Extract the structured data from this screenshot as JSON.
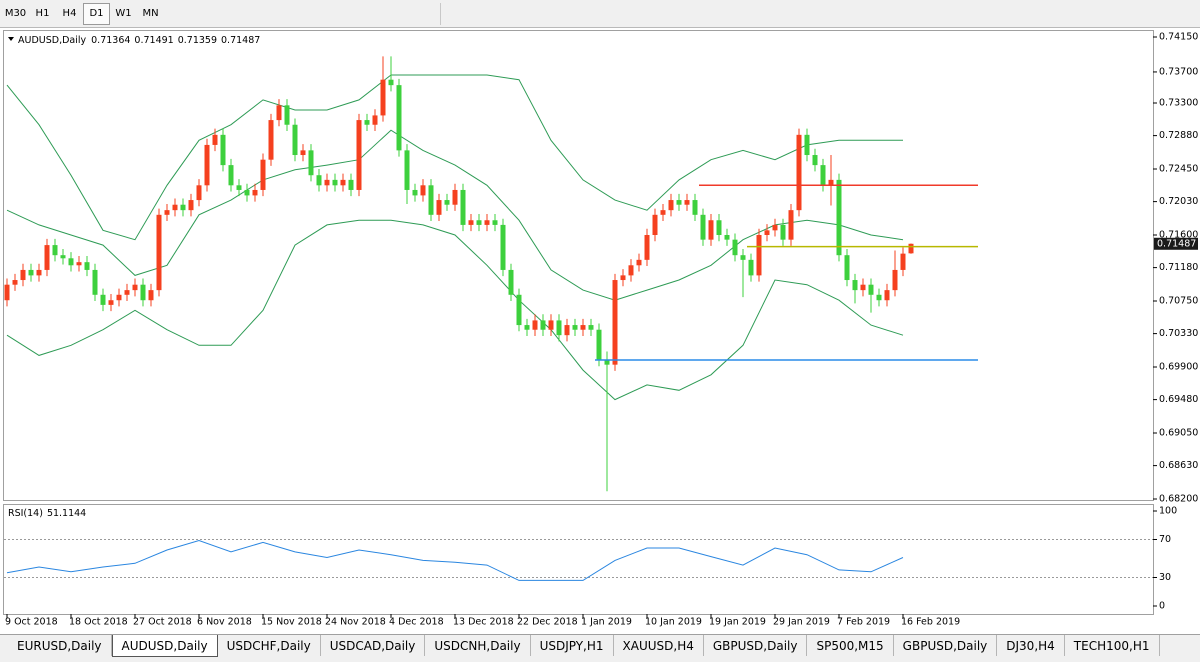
{
  "toolbar": {
    "timeframes": [
      "M30",
      "H1",
      "H4",
      "D1",
      "W1",
      "MN"
    ],
    "active": "D1"
  },
  "chart": {
    "type": "candlestick",
    "symbol": "AUDUSD,Daily",
    "categories": [
      "9 Oct 2018",
      "18 Oct 2018",
      "27 Oct 2018",
      "6 Nov 2018",
      "15 Nov 2018",
      "24 Nov 2018",
      "4 Dec 2018",
      "13 Dec 2018",
      "22 Dec 2018",
      "1 Jan 2019",
      "10 Jan 2019",
      "19 Jan 2019",
      "29 Jan 2019",
      "7 Feb 2019",
      "16 Feb 2019"
    ],
    "candles": [
      [
        0.7076,
        0.7104,
        0.7068,
        0.7096
      ],
      [
        0.7096,
        0.711,
        0.7088,
        0.7102
      ],
      [
        0.7102,
        0.7123,
        0.7094,
        0.7115
      ],
      [
        0.7115,
        0.7123,
        0.71,
        0.7108
      ],
      [
        0.7108,
        0.7123,
        0.71,
        0.7115
      ],
      [
        0.7115,
        0.7155,
        0.7107,
        0.7147
      ],
      [
        0.7147,
        0.7155,
        0.7126,
        0.7134
      ],
      [
        0.7134,
        0.7142,
        0.7122,
        0.713
      ],
      [
        0.713,
        0.7138,
        0.7113,
        0.7121
      ],
      [
        0.7121,
        0.7133,
        0.7113,
        0.7125
      ],
      [
        0.7125,
        0.7133,
        0.7107,
        0.7115
      ],
      [
        0.7115,
        0.7123,
        0.7075,
        0.7083
      ],
      [
        0.7083,
        0.7091,
        0.7062,
        0.707
      ],
      [
        0.707,
        0.7084,
        0.7062,
        0.7076
      ],
      [
        0.7076,
        0.7091,
        0.7068,
        0.7083
      ],
      [
        0.7083,
        0.7097,
        0.7075,
        0.7089
      ],
      [
        0.7089,
        0.7104,
        0.7081,
        0.7096
      ],
      [
        0.7096,
        0.7104,
        0.7068,
        0.7076
      ],
      [
        0.7076,
        0.7097,
        0.7068,
        0.7089
      ],
      [
        0.7089,
        0.7194,
        0.7081,
        0.7186
      ],
      [
        0.7186,
        0.72,
        0.7178,
        0.7192
      ],
      [
        0.7192,
        0.7207,
        0.7184,
        0.7199
      ],
      [
        0.7199,
        0.7207,
        0.7184,
        0.7192
      ],
      [
        0.7192,
        0.7213,
        0.7184,
        0.7205
      ],
      [
        0.7205,
        0.7232,
        0.7197,
        0.7224
      ],
      [
        0.7224,
        0.7284,
        0.7216,
        0.7276
      ],
      [
        0.7276,
        0.7297,
        0.7268,
        0.7289
      ],
      [
        0.7289,
        0.7297,
        0.7242,
        0.725
      ],
      [
        0.725,
        0.7258,
        0.7216,
        0.7224
      ],
      [
        0.7224,
        0.7232,
        0.721,
        0.7218
      ],
      [
        0.7218,
        0.7226,
        0.7203,
        0.7211
      ],
      [
        0.7211,
        0.7226,
        0.7203,
        0.7218
      ],
      [
        0.7218,
        0.7265,
        0.721,
        0.7257
      ],
      [
        0.7257,
        0.7316,
        0.7249,
        0.7308
      ],
      [
        0.7308,
        0.7335,
        0.73,
        0.7327
      ],
      [
        0.7327,
        0.7335,
        0.7294,
        0.7302
      ],
      [
        0.7302,
        0.731,
        0.7255,
        0.7263
      ],
      [
        0.7263,
        0.7277,
        0.7255,
        0.7269
      ],
      [
        0.7269,
        0.7277,
        0.7229,
        0.7237
      ],
      [
        0.7237,
        0.7245,
        0.7216,
        0.7224
      ],
      [
        0.7224,
        0.7239,
        0.7216,
        0.7231
      ],
      [
        0.7231,
        0.7239,
        0.7216,
        0.7224
      ],
      [
        0.7224,
        0.7239,
        0.7216,
        0.7231
      ],
      [
        0.7231,
        0.7239,
        0.721,
        0.7218
      ],
      [
        0.7218,
        0.7316,
        0.721,
        0.7308
      ],
      [
        0.7308,
        0.7316,
        0.7294,
        0.7302
      ],
      [
        0.7302,
        0.7322,
        0.7294,
        0.7314
      ],
      [
        0.7314,
        0.739,
        0.7306,
        0.736
      ],
      [
        0.736,
        0.739,
        0.7345,
        0.7353
      ],
      [
        0.7353,
        0.7361,
        0.7261,
        0.7269
      ],
      [
        0.7269,
        0.7277,
        0.72,
        0.7218
      ],
      [
        0.7218,
        0.7226,
        0.7203,
        0.7211
      ],
      [
        0.7211,
        0.7232,
        0.7203,
        0.7224
      ],
      [
        0.7224,
        0.7232,
        0.7178,
        0.7186
      ],
      [
        0.7186,
        0.7213,
        0.7178,
        0.7205
      ],
      [
        0.7205,
        0.7213,
        0.7191,
        0.7199
      ],
      [
        0.7199,
        0.7226,
        0.7191,
        0.7218
      ],
      [
        0.7218,
        0.7226,
        0.7165,
        0.7173
      ],
      [
        0.7173,
        0.7187,
        0.7165,
        0.7179
      ],
      [
        0.7179,
        0.7187,
        0.7165,
        0.7173
      ],
      [
        0.7173,
        0.7187,
        0.7165,
        0.7179
      ],
      [
        0.7179,
        0.7187,
        0.7165,
        0.7173
      ],
      [
        0.7173,
        0.7181,
        0.7107,
        0.7115
      ],
      [
        0.7115,
        0.7123,
        0.7075,
        0.7083
      ],
      [
        0.7083,
        0.7091,
        0.7036,
        0.7044
      ],
      [
        0.7044,
        0.7052,
        0.703,
        0.7038
      ],
      [
        0.7038,
        0.7058,
        0.703,
        0.705
      ],
      [
        0.705,
        0.7058,
        0.703,
        0.7038
      ],
      [
        0.7038,
        0.7058,
        0.703,
        0.705
      ],
      [
        0.705,
        0.7058,
        0.7023,
        0.7031
      ],
      [
        0.7031,
        0.7052,
        0.7023,
        0.7044
      ],
      [
        0.7044,
        0.7052,
        0.703,
        0.7038
      ],
      [
        0.7038,
        0.7052,
        0.703,
        0.7044
      ],
      [
        0.7044,
        0.7052,
        0.703,
        0.7038
      ],
      [
        0.7038,
        0.7046,
        0.6991,
        0.6999
      ],
      [
        0.6999,
        0.701,
        0.683,
        0.6993
      ],
      [
        0.6993,
        0.711,
        0.6985,
        0.7102
      ],
      [
        0.7102,
        0.7116,
        0.7094,
        0.7108
      ],
      [
        0.7108,
        0.7129,
        0.71,
        0.7121
      ],
      [
        0.7121,
        0.7136,
        0.7113,
        0.7128
      ],
      [
        0.7128,
        0.7168,
        0.712,
        0.716
      ],
      [
        0.716,
        0.7194,
        0.7152,
        0.7186
      ],
      [
        0.7186,
        0.72,
        0.7178,
        0.7192
      ],
      [
        0.7192,
        0.7213,
        0.7184,
        0.7205
      ],
      [
        0.7205,
        0.7213,
        0.7191,
        0.7199
      ],
      [
        0.7199,
        0.7213,
        0.7191,
        0.7205
      ],
      [
        0.7205,
        0.7213,
        0.7178,
        0.7186
      ],
      [
        0.7186,
        0.7194,
        0.7146,
        0.7154
      ],
      [
        0.7154,
        0.7187,
        0.7146,
        0.7179
      ],
      [
        0.7179,
        0.7187,
        0.7152,
        0.716
      ],
      [
        0.716,
        0.7168,
        0.7146,
        0.7154
      ],
      [
        0.7154,
        0.7162,
        0.7126,
        0.7134
      ],
      [
        0.7134,
        0.7142,
        0.708,
        0.7128
      ],
      [
        0.7128,
        0.7136,
        0.71,
        0.7108
      ],
      [
        0.7108,
        0.7168,
        0.71,
        0.716
      ],
      [
        0.716,
        0.7174,
        0.7152,
        0.7166
      ],
      [
        0.7166,
        0.7181,
        0.7158,
        0.7173
      ],
      [
        0.7173,
        0.7181,
        0.7146,
        0.7154
      ],
      [
        0.7154,
        0.72,
        0.7146,
        0.7192
      ],
      [
        0.7192,
        0.7297,
        0.7184,
        0.7289
      ],
      [
        0.7289,
        0.7297,
        0.7255,
        0.7263
      ],
      [
        0.7263,
        0.7271,
        0.7242,
        0.725
      ],
      [
        0.725,
        0.7258,
        0.7216,
        0.7224
      ],
      [
        0.7224,
        0.7263,
        0.7198,
        0.7231
      ],
      [
        0.7231,
        0.7239,
        0.7126,
        0.7134
      ],
      [
        0.7134,
        0.7142,
        0.7094,
        0.7102
      ],
      [
        0.7102,
        0.711,
        0.7072,
        0.7089
      ],
      [
        0.7089,
        0.7104,
        0.7081,
        0.7096
      ],
      [
        0.7096,
        0.7104,
        0.706,
        0.7083
      ],
      [
        0.7083,
        0.7091,
        0.7068,
        0.7076
      ],
      [
        0.7076,
        0.7097,
        0.7068,
        0.7089
      ],
      [
        0.7089,
        0.714,
        0.7081,
        0.7115
      ],
      [
        0.7115,
        0.7144,
        0.7107,
        0.7136
      ],
      [
        0.71364,
        0.71491,
        0.71359,
        0.71487
      ]
    ],
    "colors": {
      "up": "#f5401f",
      "down": "#3dd03d"
    },
    "ylim": [
      0.682,
      0.7415
    ],
    "yticks": [
      {
        "value": 0.7415,
        "label": "0.74150"
      },
      {
        "value": 0.737,
        "label": "0.73700"
      },
      {
        "value": 0.733,
        "label": "0.73300"
      },
      {
        "value": 0.7288,
        "label": "0.72880"
      },
      {
        "value": 0.7245,
        "label": "0.72450"
      },
      {
        "value": 0.7203,
        "label": "0.72030"
      },
      {
        "value": 0.716,
        "label": "0.71600"
      },
      {
        "value": 0.7118,
        "label": "0.71180"
      },
      {
        "value": 0.7075,
        "label": "0.70750"
      },
      {
        "value": 0.7033,
        "label": "0.70330"
      },
      {
        "value": 0.699,
        "label": "0.69900"
      },
      {
        "value": 0.6948,
        "label": "0.69480"
      },
      {
        "value": 0.6905,
        "label": "0.69050"
      },
      {
        "value": 0.6863,
        "label": "0.68630"
      },
      {
        "value": 0.682,
        "label": "0.68200"
      }
    ],
    "bands": {
      "color": "#2e9b55",
      "upper": [
        0.7353,
        0.7302,
        0.7237,
        0.7166,
        0.7154,
        0.7224,
        0.7282,
        0.7302,
        0.7334,
        0.7321,
        0.7321,
        0.7334,
        0.7366,
        0.7366,
        0.7366,
        0.7366,
        0.736,
        0.7282,
        0.7231,
        0.7205,
        0.7192,
        0.7231,
        0.7257,
        0.7269,
        0.7257,
        0.7276,
        0.7282,
        0.7282,
        0.7282
      ],
      "middle": [
        0.7192,
        0.7173,
        0.716,
        0.7147,
        0.7108,
        0.7121,
        0.7186,
        0.7205,
        0.7231,
        0.7244,
        0.725,
        0.7257,
        0.7295,
        0.7269,
        0.725,
        0.7224,
        0.7179,
        0.7115,
        0.7089,
        0.7076,
        0.7089,
        0.7102,
        0.7121,
        0.7154,
        0.7173,
        0.7179,
        0.7173,
        0.716,
        0.7154
      ],
      "lower": [
        0.7031,
        0.7005,
        0.7018,
        0.7038,
        0.7063,
        0.7038,
        0.7018,
        0.7018,
        0.7063,
        0.7147,
        0.7173,
        0.7179,
        0.7179,
        0.7173,
        0.716,
        0.7121,
        0.7076,
        0.7038,
        0.6986,
        0.6948,
        0.6967,
        0.696,
        0.698,
        0.7018,
        0.7102,
        0.7096,
        0.7076,
        0.7044,
        0.7031
      ]
    },
    "levels": [
      {
        "value": 0.7224,
        "color": "#f03a2a"
      },
      {
        "value": 0.7145,
        "color": "#b8b800"
      },
      {
        "value": 0.6999,
        "color": "#2a8ce8"
      }
    ],
    "rsi": {
      "label": "RSI(14)",
      "value": 51.1144,
      "color": "#2a86e0",
      "values": [
        35,
        41,
        36,
        41,
        45,
        59,
        69,
        57,
        67,
        57,
        51,
        59,
        54,
        48,
        46,
        43,
        27,
        27,
        27,
        48,
        61,
        61,
        52,
        43,
        61,
        54,
        38,
        36,
        51
      ],
      "ylim": [
        0,
        100
      ],
      "yticks": [
        100,
        70,
        30,
        0
      ],
      "levels": [
        70,
        30
      ]
    }
  },
  "tabs": {
    "items": [
      "EURUSD,Daily",
      "AUDUSD,Daily",
      "USDCHF,Daily",
      "USDCAD,Daily",
      "USDCNH,Daily",
      "USDJPY,H1",
      "XAUUSD,H4",
      "GBPUSD,Daily",
      "SP500,M15",
      "GBPUSD,Daily",
      "DJ30,H4",
      "TECH100,H1"
    ],
    "active": 1
  }
}
